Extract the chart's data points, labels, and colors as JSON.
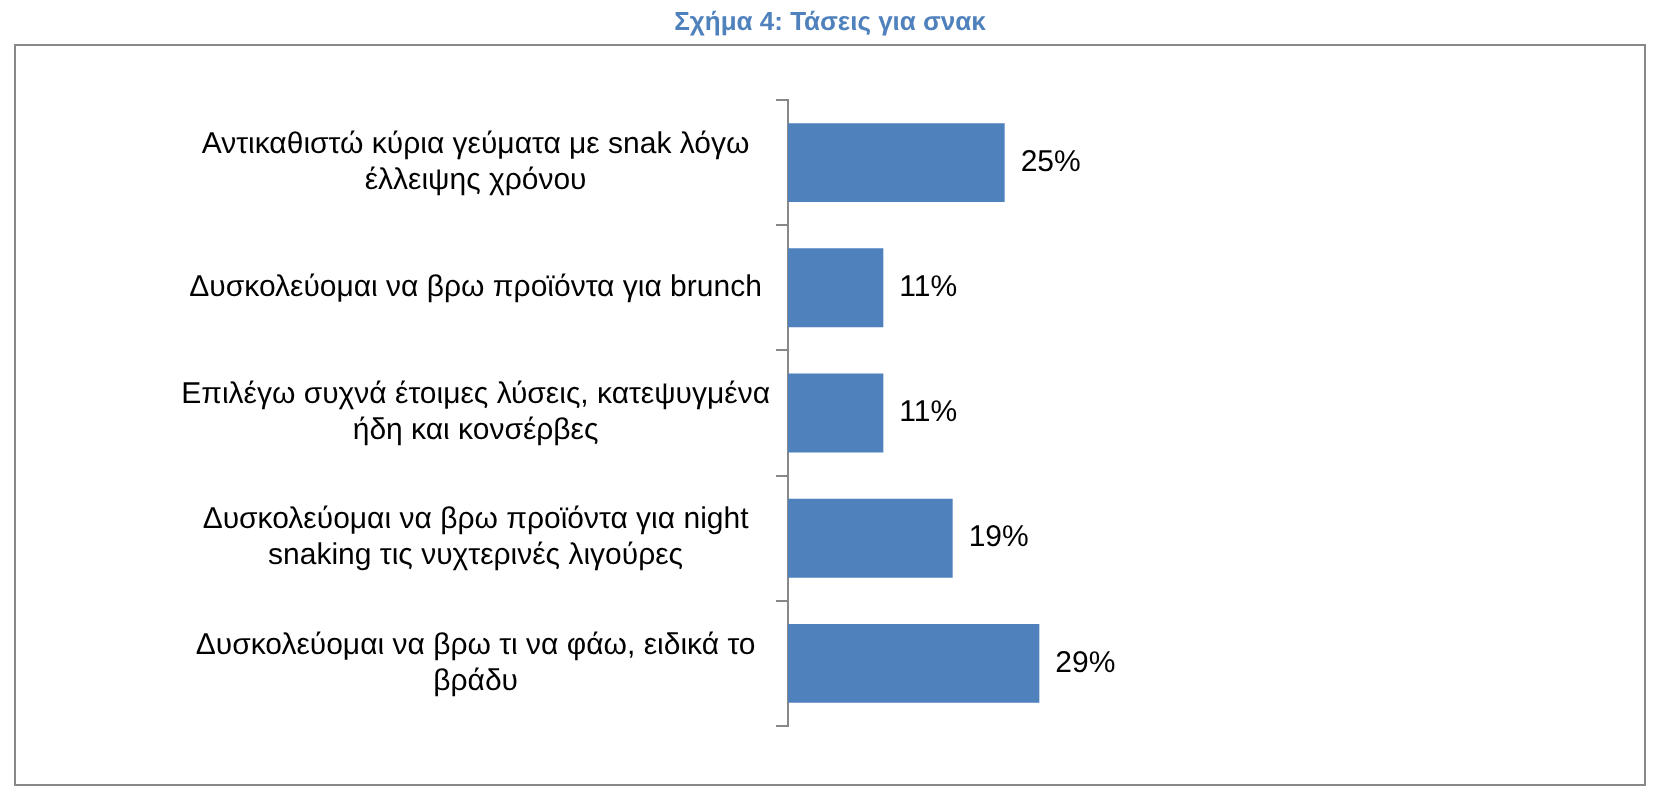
{
  "chart_data": {
    "type": "bar",
    "orientation": "horizontal",
    "title": "Σχήμα 4: Τάσεις για σνακ",
    "categories": [
      "Αντικαθιστώ κύρια γεύματα με snak λόγω έλλειψης χρόνου",
      "Δυσκολεύομαι να βρω προϊόντα για brunch",
      "Επιλέγω συχνά έτοιμες λύσεις, κατεψυγμένα ήδη και κονσέρβες",
      "Δυσκολεύομαι να βρω προϊόντα για night snaking τις νυχτερινές λιγούρες",
      "Δυσκολεύομαι να βρω τι να φάω, ειδικά το βράδυ"
    ],
    "values": [
      25,
      11,
      11,
      19,
      29
    ],
    "value_labels": [
      "25%",
      "11%",
      "11%",
      "19%",
      "29%"
    ],
    "color": "#4f81bd",
    "tick_labels": "y",
    "grid": false,
    "legend": false
  }
}
